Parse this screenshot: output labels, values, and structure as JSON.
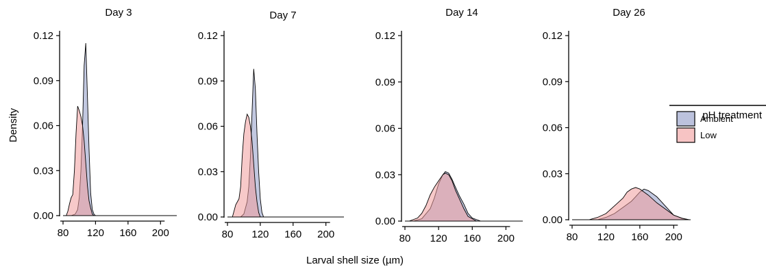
{
  "chart_data": {
    "type": "area",
    "ylabel": "Density",
    "xlabel": "Larval shell size (µm)",
    "legend": {
      "title": "pH treatment",
      "position": "right",
      "entries": [
        {
          "label": "Ambient",
          "color": "#8f9ac6"
        },
        {
          "label": "Low",
          "color": "#f19c9c"
        }
      ]
    },
    "ylim": [
      0,
      0.12
    ],
    "yticks": [
      "0.00",
      "0.03",
      "0.06",
      "0.09",
      "0.12"
    ],
    "xticks": [
      "80",
      "120",
      "160",
      "200"
    ],
    "grid": false,
    "panels": [
      {
        "title": "Day 3",
        "xlim": [
          80,
          220
        ],
        "series": [
          {
            "name": "Ambient",
            "x": [
              90,
              95,
              98,
              100,
              102,
              104,
              106,
              108,
              110,
              112,
              114,
              116,
              118,
              120
            ],
            "y": [
              0,
              0.001,
              0.004,
              0.012,
              0.03,
              0.06,
              0.1,
              0.115,
              0.08,
              0.045,
              0.015,
              0.004,
              0.001,
              0
            ]
          },
          {
            "name": "Low",
            "x": [
              84,
              86,
              88,
              90,
              92,
              94,
              96,
              98,
              100,
              102,
              104,
              106,
              108,
              110,
              112,
              114,
              116,
              118
            ],
            "y": [
              0,
              0.003,
              0.008,
              0.012,
              0.014,
              0.03,
              0.055,
              0.073,
              0.07,
              0.066,
              0.06,
              0.05,
              0.035,
              0.02,
              0.01,
              0.005,
              0.001,
              0
            ]
          }
        ]
      },
      {
        "title": "Day 7",
        "xlim": [
          80,
          222
        ],
        "series": [
          {
            "name": "Ambient",
            "x": [
              96,
              100,
              104,
              106,
              108,
              110,
              112,
              114,
              116,
              118,
              120,
              122,
              124
            ],
            "y": [
              0,
              0.002,
              0.01,
              0.02,
              0.04,
              0.07,
              0.098,
              0.085,
              0.055,
              0.03,
              0.012,
              0.003,
              0
            ]
          },
          {
            "name": "Low",
            "x": [
              86,
              88,
              90,
              92,
              94,
              96,
              98,
              100,
              102,
              104,
              106,
              108,
              110,
              112,
              114,
              116,
              118,
              120
            ],
            "y": [
              0,
              0.004,
              0.008,
              0.01,
              0.012,
              0.02,
              0.04,
              0.055,
              0.063,
              0.068,
              0.066,
              0.06,
              0.05,
              0.035,
              0.02,
              0.01,
              0.003,
              0
            ]
          }
        ]
      },
      {
        "title": "Day 14",
        "xlim": [
          80,
          220
        ],
        "series": [
          {
            "name": "Ambient",
            "x": [
              90,
              100,
              110,
              115,
              120,
              125,
              128,
              132,
              136,
              140,
              145,
              150,
              155,
              160,
              170
            ],
            "y": [
              0,
              0.0015,
              0.008,
              0.015,
              0.024,
              0.03,
              0.032,
              0.031,
              0.027,
              0.022,
              0.016,
              0.011,
              0.005,
              0.002,
              0
            ]
          },
          {
            "name": "Low",
            "x": [
              85,
              95,
              100,
              105,
              110,
              115,
              120,
              125,
              128,
              132,
              136,
              140,
              145,
              150,
              155,
              165
            ],
            "y": [
              0,
              0.002,
              0.005,
              0.01,
              0.017,
              0.022,
              0.026,
              0.03,
              0.031,
              0.03,
              0.026,
              0.02,
              0.014,
              0.008,
              0.003,
              0
            ]
          }
        ]
      },
      {
        "title": "Day 26",
        "xlim": [
          80,
          220
        ],
        "series": [
          {
            "name": "Ambient",
            "x": [
              110,
              120,
              130,
              140,
              150,
              155,
              160,
              165,
              170,
              175,
              180,
              185,
              190,
              195,
              200,
              210,
              218
            ],
            "y": [
              0,
              0.0015,
              0.004,
              0.008,
              0.012,
              0.015,
              0.018,
              0.02,
              0.019,
              0.017,
              0.015,
              0.012,
              0.009,
              0.006,
              0.003,
              0.0008,
              0
            ]
          },
          {
            "name": "Low",
            "x": [
              100,
              110,
              120,
              130,
              140,
              145,
              150,
              155,
              160,
              165,
              170,
              180,
              190,
              200,
              210,
              218
            ],
            "y": [
              0,
              0.0015,
              0.004,
              0.009,
              0.014,
              0.018,
              0.02,
              0.021,
              0.02,
              0.018,
              0.016,
              0.011,
              0.007,
              0.003,
              0.001,
              0
            ]
          }
        ]
      }
    ]
  }
}
